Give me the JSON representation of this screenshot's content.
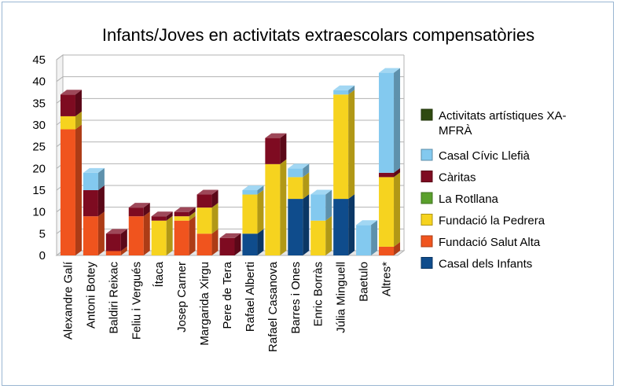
{
  "chart_data": {
    "type": "bar",
    "stacked": true,
    "three_d": true,
    "title": "Infants/Joves en activitats extraescolars compensatòries",
    "xlabel": "",
    "ylabel": "",
    "ylim": [
      0,
      45
    ],
    "yticks": [
      0,
      5,
      10,
      15,
      20,
      25,
      30,
      35,
      40,
      45
    ],
    "grid": true,
    "legend_position": "right",
    "categories": [
      "Alexandre Galí",
      "Antoni Botey",
      "Baldiri Reixac",
      "Feliu i Vergués",
      "Ítaca",
      "Josep Carner",
      "Margarida Xirgu",
      "Pere de Tera",
      "Rafael Alberti",
      "Rafael Casanova",
      "Barres i Ones",
      "Enric Borràs",
      "Júlia Minguell",
      "Baetulo",
      "Altres*"
    ],
    "series": [
      {
        "name": "Casal dels Infants",
        "color": "#0f4c8c",
        "values": [
          0,
          0,
          0,
          0,
          0,
          0,
          0,
          0,
          5,
          0,
          13,
          0,
          13,
          0,
          0
        ]
      },
      {
        "name": "Fundació Salut Alta",
        "color": "#f0541e",
        "values": [
          29,
          9,
          1,
          9,
          0,
          8,
          5,
          0,
          0,
          0,
          0,
          0,
          0,
          0,
          2
        ]
      },
      {
        "name": "Fundació la Pedrera",
        "color": "#f6d31f",
        "values": [
          3,
          0,
          0,
          0,
          8,
          1,
          6,
          0,
          9,
          21,
          5,
          8,
          24,
          0,
          16
        ]
      },
      {
        "name": "La Rotllana",
        "color": "#5aa02c",
        "values": [
          0,
          0,
          0,
          0,
          0,
          0,
          0,
          0,
          0,
          0,
          0,
          0,
          0,
          0,
          0
        ]
      },
      {
        "name": "Càritas",
        "color": "#7e0b21",
        "values": [
          5,
          6,
          4,
          2,
          1,
          1,
          3,
          4,
          0,
          6,
          0,
          0,
          0,
          0,
          1
        ]
      },
      {
        "name": "Casal Cívic Llefià",
        "color": "#83c9ef",
        "values": [
          0,
          4,
          0,
          0,
          0,
          0,
          0,
          0,
          1,
          0,
          2,
          6,
          1,
          7,
          23
        ]
      },
      {
        "name": "Activitats artístiques XA-MFRÀ",
        "color": "#2f4a10",
        "values": [
          0,
          0,
          0,
          0,
          0,
          0,
          0,
          0,
          0,
          0,
          0,
          0,
          0,
          0,
          0
        ]
      }
    ],
    "legend_order": [
      "Activitats artístiques XA-MFRÀ",
      "Casal Cívic Llefià",
      "Càritas",
      "La Rotllana",
      "Fundació la Pedrera",
      "Fundació Salut Alta",
      "Casal dels Infants"
    ],
    "legend_lines": {
      "Activitats artístiques XA-MFRÀ": [
        "Activitats artístiques XA-",
        "MFRÀ"
      ]
    }
  }
}
